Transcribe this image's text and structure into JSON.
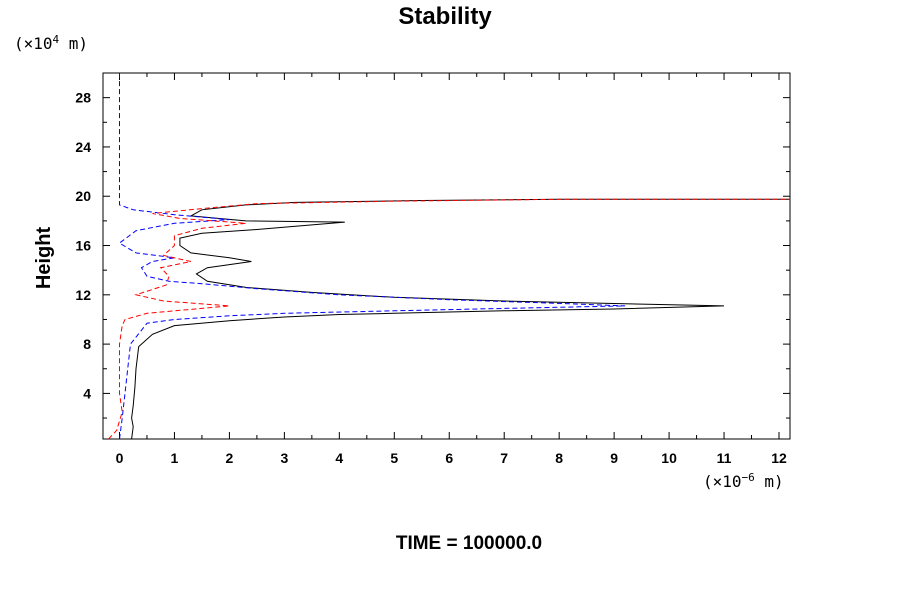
{
  "chart_data": {
    "type": "line",
    "title": "Stability",
    "ylabel": "Height",
    "xlabel": "",
    "y_unit": {
      "prefix": "(×10",
      "exp": "4",
      "suffix": " m)"
    },
    "x_unit": {
      "prefix": "(×10",
      "exp": "−6",
      "suffix": " m)"
    },
    "footer": "TIME = 100000.0",
    "xlim": [
      -0.3,
      12.2
    ],
    "ylim": [
      0.3,
      30
    ],
    "x_ticks": [
      0,
      1,
      2,
      3,
      4,
      5,
      6,
      7,
      8,
      9,
      10,
      11,
      12
    ],
    "x_tick_labels": [
      "0",
      "1",
      "2",
      "3",
      "4",
      "5",
      "6",
      "7",
      "8",
      "9",
      "10",
      "11",
      "12"
    ],
    "y_ticks": [
      4,
      8,
      12,
      16,
      20,
      24,
      28
    ],
    "y_tick_labels": [
      "4",
      "8",
      "12",
      "16",
      "20",
      "24",
      "28"
    ],
    "grid": false,
    "series": [
      {
        "color": "#000000",
        "dash": "solid",
        "points": [
          [
            0.22,
            0.3
          ],
          [
            0.25,
            1.3
          ],
          [
            0.22,
            2.0
          ],
          [
            0.25,
            3.0
          ],
          [
            0.28,
            4.5
          ],
          [
            0.3,
            6.0
          ],
          [
            0.35,
            7.8
          ],
          [
            0.6,
            8.8
          ],
          [
            1.0,
            9.5
          ],
          [
            2.0,
            9.9
          ],
          [
            3.0,
            10.2
          ],
          [
            4.0,
            10.4
          ],
          [
            5.0,
            10.5
          ],
          [
            7.0,
            10.7
          ],
          [
            9.0,
            10.85
          ],
          [
            11.0,
            11.1
          ],
          [
            9.5,
            11.25
          ],
          [
            7.0,
            11.5
          ],
          [
            5.0,
            11.8
          ],
          [
            3.5,
            12.2
          ],
          [
            2.3,
            12.6
          ],
          [
            1.6,
            13.1
          ],
          [
            1.4,
            13.7
          ],
          [
            1.6,
            14.2
          ],
          [
            2.4,
            14.7
          ],
          [
            2.0,
            15.0
          ],
          [
            1.3,
            15.4
          ],
          [
            1.1,
            16.0
          ],
          [
            1.1,
            16.6
          ],
          [
            1.5,
            17.0
          ],
          [
            2.5,
            17.3
          ],
          [
            4.1,
            17.9
          ],
          [
            2.3,
            18.0
          ],
          [
            1.3,
            18.4
          ],
          [
            1.5,
            18.9
          ],
          [
            2.3,
            19.3
          ],
          [
            3.2,
            19.5
          ],
          [
            5.5,
            19.65
          ],
          [
            8.0,
            19.75
          ],
          [
            12.2,
            19.75
          ]
        ]
      },
      {
        "color": "#0000ff",
        "dash": "dashed",
        "points": [
          [
            0.0,
            0.3
          ],
          [
            0.05,
            2.0
          ],
          [
            0.1,
            4.0
          ],
          [
            0.15,
            6.0
          ],
          [
            0.2,
            8.0
          ],
          [
            0.5,
            9.7
          ],
          [
            1.0,
            10.0
          ],
          [
            2.0,
            10.3
          ],
          [
            3.0,
            10.5
          ],
          [
            5.0,
            10.7
          ],
          [
            7.0,
            10.9
          ],
          [
            9.2,
            11.1
          ],
          [
            8.0,
            11.3
          ],
          [
            6.0,
            11.6
          ],
          [
            4.0,
            12.0
          ],
          [
            2.5,
            12.5
          ],
          [
            1.5,
            12.9
          ],
          [
            0.9,
            13.1
          ],
          [
            0.5,
            13.5
          ],
          [
            0.4,
            14.2
          ],
          [
            0.6,
            14.7
          ],
          [
            1.0,
            15.0
          ],
          [
            0.3,
            15.4
          ],
          [
            0.0,
            16.2
          ],
          [
            0.3,
            17.2
          ],
          [
            1.0,
            17.8
          ],
          [
            2.0,
            18.1
          ],
          [
            1.0,
            18.5
          ],
          [
            0.25,
            18.9
          ],
          [
            0.0,
            19.3
          ],
          [
            0.0,
            25.0
          ],
          [
            0.0,
            30.0
          ]
        ]
      },
      {
        "color": "#ff0000",
        "dash": "dashed",
        "points": [
          [
            -0.2,
            0.3
          ],
          [
            -0.05,
            1.0
          ],
          [
            0.05,
            2.5
          ],
          [
            0.0,
            4.0
          ],
          [
            0.0,
            6.0
          ],
          [
            0.0,
            8.0
          ],
          [
            0.05,
            9.5
          ],
          [
            0.1,
            10.0
          ],
          [
            0.5,
            10.5
          ],
          [
            2.0,
            11.1
          ],
          [
            0.8,
            11.5
          ],
          [
            0.3,
            12.0
          ],
          [
            0.85,
            12.8
          ],
          [
            0.9,
            13.5
          ],
          [
            0.75,
            14.2
          ],
          [
            1.3,
            14.7
          ],
          [
            0.8,
            15.2
          ],
          [
            1.0,
            16.0
          ],
          [
            1.0,
            16.8
          ],
          [
            1.5,
            17.4
          ],
          [
            2.3,
            17.8
          ],
          [
            1.1,
            18.2
          ],
          [
            0.6,
            18.6
          ],
          [
            1.5,
            19.0
          ],
          [
            2.5,
            19.4
          ],
          [
            5.0,
            19.6
          ],
          [
            8.0,
            19.75
          ],
          [
            12.2,
            19.75
          ]
        ]
      }
    ]
  }
}
